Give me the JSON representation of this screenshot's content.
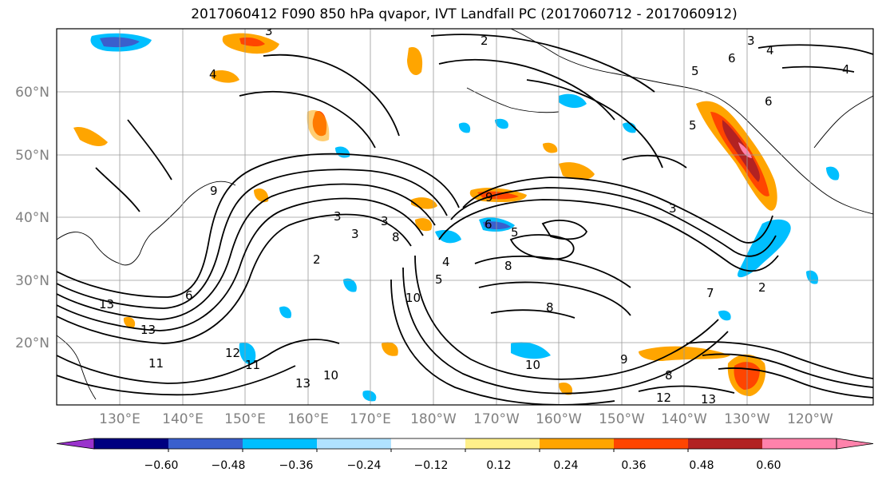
{
  "title": "2017060412 F090 850 hPa qvapor, IVT Landfall PC (2017060712 - 2017060912)",
  "map": {
    "lon_labels": [
      "130°E",
      "140°E",
      "150°E",
      "160°E",
      "170°E",
      "180°W",
      "170°W",
      "160°W",
      "150°W",
      "140°W",
      "130°W",
      "120°W"
    ],
    "lat_labels": [
      "60°N",
      "50°N",
      "40°N",
      "30°N",
      "20°N"
    ],
    "contour_labels": [
      "13",
      "13",
      "11",
      "11",
      "12",
      "13",
      "10",
      "3",
      "2",
      "9",
      "6",
      "3",
      "3",
      "8",
      "9",
      "8",
      "5",
      "6",
      "4",
      "10",
      "5",
      "8",
      "3",
      "4",
      "5",
      "6",
      "4",
      "3",
      "7",
      "2",
      "4",
      "5",
      "6",
      "2",
      "3",
      "10",
      "12",
      "13",
      "8",
      "9"
    ]
  },
  "colorbar": {
    "tick_labels": [
      "−0.60",
      "−0.48",
      "−0.36",
      "−0.24",
      "−0.12",
      "0.12",
      "0.24",
      "0.36",
      "0.48",
      "0.60"
    ],
    "colors": [
      "#9932cc",
      "#000080",
      "#3a5fcd",
      "#00bfff",
      "#b0e2ff",
      "#ffffff",
      "#fff08a",
      "#ffa500",
      "#ff4500",
      "#b22222",
      "#ff82ab",
      "#ff82ab"
    ]
  }
}
